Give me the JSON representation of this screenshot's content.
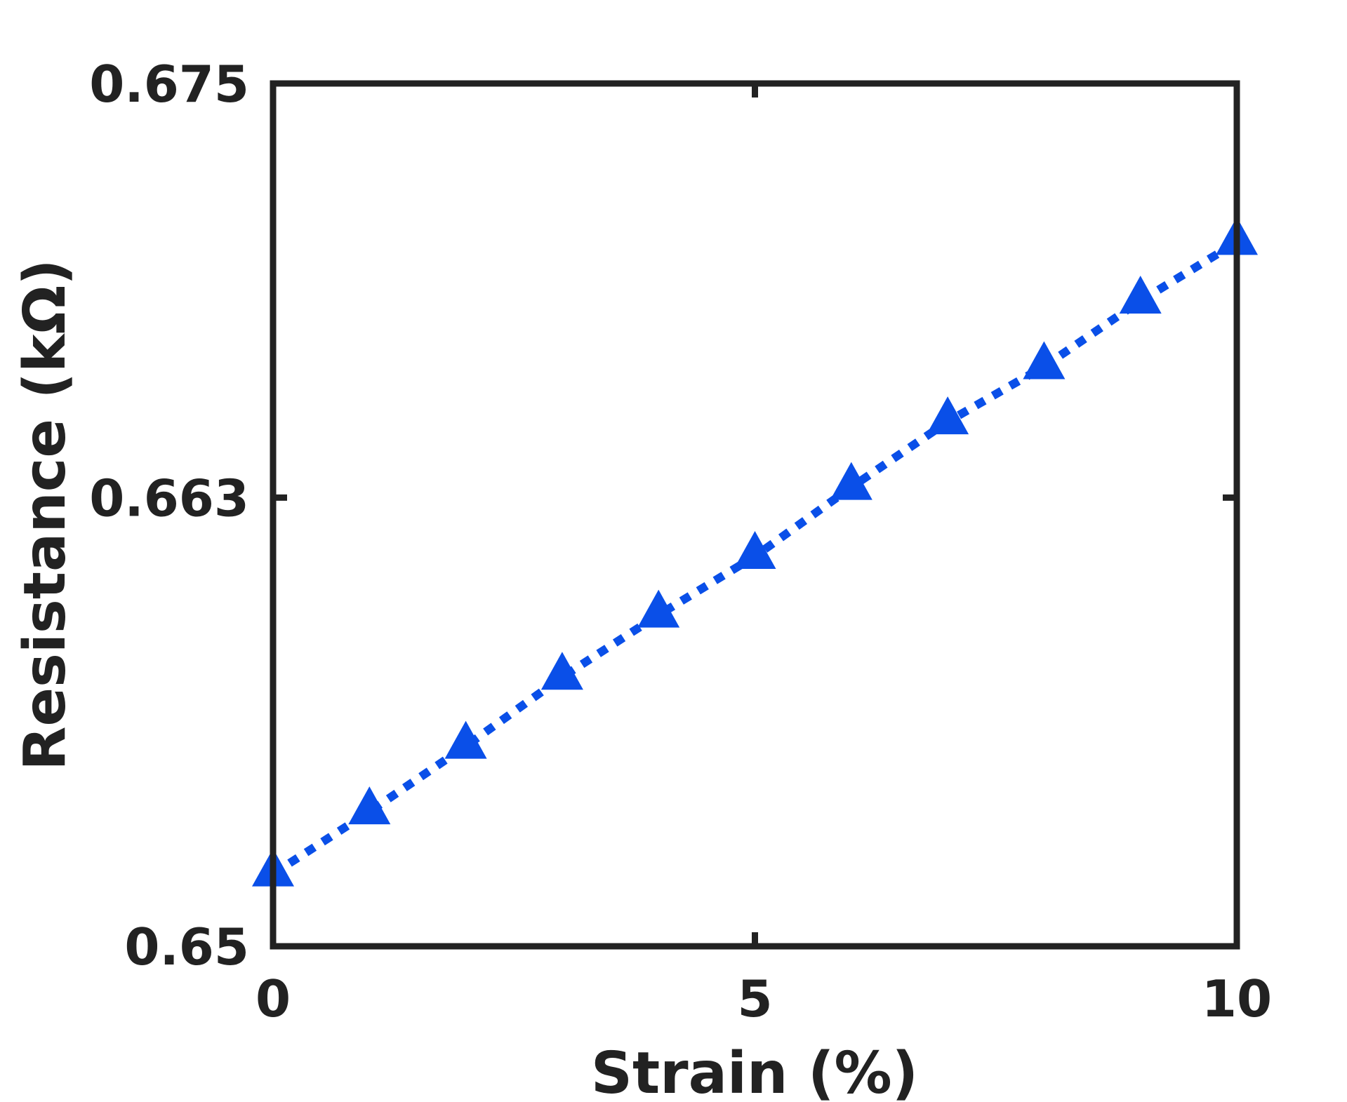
{
  "chart_data": {
    "type": "line",
    "title": "",
    "xlabel": "Strain (%)",
    "ylabel": "Resistance (kΩ)",
    "xlim": [
      0,
      10
    ],
    "ylim": [
      0.65,
      0.675
    ],
    "x_ticks": [
      {
        "value": 0,
        "label": "0"
      },
      {
        "value": 5,
        "label": "5"
      },
      {
        "value": 10,
        "label": "10"
      }
    ],
    "y_ticks": [
      {
        "value": 0.65,
        "label": "0.65"
      },
      {
        "value": 0.663,
        "label": "0.663"
      },
      {
        "value": 0.675,
        "label": "0.675"
      }
    ],
    "grid": false,
    "legend": "none",
    "series": [
      {
        "color": "#0a4fe8",
        "marker": "triangle-up",
        "line_style": "dotted",
        "points": [
          {
            "x": 0,
            "y": 0.6521
          },
          {
            "x": 1,
            "y": 0.6539
          },
          {
            "x": 2,
            "y": 0.6558
          },
          {
            "x": 3,
            "y": 0.6578
          },
          {
            "x": 4,
            "y": 0.6596
          },
          {
            "x": 5,
            "y": 0.6613
          },
          {
            "x": 6,
            "y": 0.6633
          },
          {
            "x": 7,
            "y": 0.6652
          },
          {
            "x": 8,
            "y": 0.6668
          },
          {
            "x": 9,
            "y": 0.6687
          },
          {
            "x": 10,
            "y": 0.6704
          }
        ]
      }
    ]
  }
}
